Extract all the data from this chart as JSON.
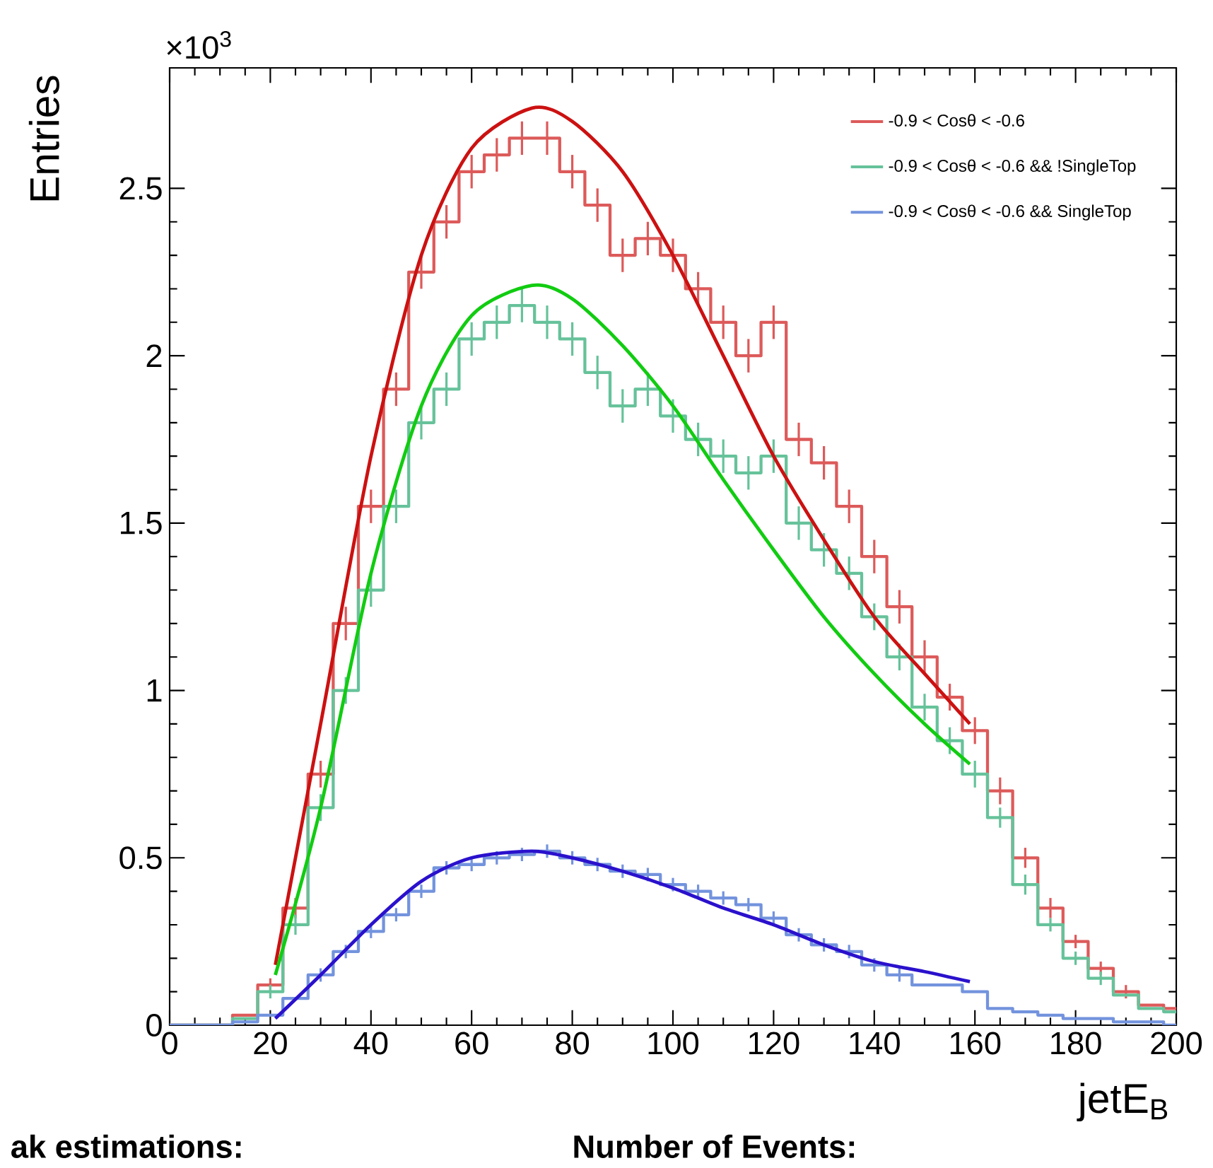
{
  "chart_data": {
    "type": "step",
    "xlabel": "jetE$_{B}$",
    "ylabel": "Entries",
    "annotations": [
      "×10$^{3}$",
      "ak estimations:",
      "Number of Events:"
    ],
    "xlim": [
      0,
      200
    ],
    "xticks": [
      0,
      20,
      40,
      60,
      80,
      100,
      120,
      140,
      160,
      180,
      200
    ],
    "ylim": [
      0,
      2.86
    ],
    "yticks": [
      0,
      0.5,
      1,
      1.5,
      2,
      2.5
    ],
    "legend": "top right",
    "grid": false,
    "x": [
      0,
      5,
      10,
      15,
      20,
      25,
      30,
      35,
      40,
      45,
      50,
      55,
      60,
      65,
      70,
      75,
      80,
      85,
      90,
      95,
      100,
      105,
      110,
      115,
      120,
      125,
      130,
      135,
      140,
      145,
      150,
      155,
      160,
      165,
      170,
      175,
      180,
      185,
      190,
      195,
      200
    ],
    "series": [
      {
        "name": "-0.9 < Cosθ < -0.6",
        "color": "#dd5a5a",
        "values": [
          0,
          0,
          0,
          0.03,
          0.12,
          0.35,
          0.75,
          1.2,
          1.55,
          1.9,
          2.25,
          2.4,
          2.55,
          2.6,
          2.65,
          2.65,
          2.55,
          2.45,
          2.3,
          2.35,
          2.3,
          2.2,
          2.1,
          2.0,
          2.1,
          1.75,
          1.68,
          1.55,
          1.4,
          1.25,
          1.1,
          0.98,
          0.88,
          0.7,
          0.5,
          0.35,
          0.25,
          0.17,
          0.1,
          0.06,
          0.05
        ],
        "errors": [
          null,
          null,
          null,
          null,
          0.02,
          0.03,
          0.04,
          0.05,
          0.05,
          0.05,
          0.05,
          0.05,
          0.05,
          0.05,
          0.05,
          0.05,
          0.05,
          0.05,
          0.05,
          0.05,
          0.05,
          0.05,
          0.05,
          0.05,
          0.05,
          0.05,
          0.05,
          0.05,
          0.05,
          0.05,
          0.05,
          0.04,
          0.04,
          0.04,
          0.03,
          0.03,
          0.02,
          0.02,
          0.02,
          null,
          null
        ]
      },
      {
        "name": "-0.9 < Cosθ < -0.6 && !SingleTop",
        "color": "#66c29a",
        "values": [
          0,
          0,
          0,
          0.02,
          0.1,
          0.3,
          0.65,
          1.0,
          1.3,
          1.55,
          1.8,
          1.9,
          2.05,
          2.1,
          2.15,
          2.1,
          2.05,
          1.95,
          1.85,
          1.9,
          1.82,
          1.75,
          1.7,
          1.65,
          1.7,
          1.5,
          1.42,
          1.35,
          1.22,
          1.1,
          0.95,
          0.85,
          0.75,
          0.62,
          0.42,
          0.3,
          0.2,
          0.14,
          0.09,
          0.05,
          0.04
        ],
        "errors": [
          null,
          null,
          null,
          null,
          0.02,
          0.03,
          0.04,
          0.04,
          0.05,
          0.05,
          0.05,
          0.05,
          0.05,
          0.05,
          0.05,
          0.05,
          0.05,
          0.05,
          0.05,
          0.05,
          0.05,
          0.05,
          0.05,
          0.05,
          0.05,
          0.05,
          0.05,
          0.05,
          0.04,
          0.04,
          0.04,
          0.04,
          0.04,
          0.03,
          0.03,
          0.02,
          0.02,
          0.02,
          null,
          null,
          null
        ]
      },
      {
        "name": "-0.9 < Cosθ < -0.6 && SingleTop",
        "color": "#7393dd",
        "values": [
          0,
          0,
          0,
          0.01,
          0.03,
          0.08,
          0.15,
          0.22,
          0.28,
          0.33,
          0.4,
          0.47,
          0.48,
          0.5,
          0.51,
          0.52,
          0.5,
          0.48,
          0.46,
          0.45,
          0.42,
          0.4,
          0.38,
          0.36,
          0.32,
          0.27,
          0.24,
          0.22,
          0.18,
          0.15,
          0.12,
          0.12,
          0.1,
          0.05,
          0.04,
          0.03,
          0.02,
          0.02,
          0.01,
          0.01,
          0
        ],
        "errors": [
          null,
          null,
          null,
          null,
          null,
          null,
          0.02,
          0.02,
          0.02,
          0.02,
          0.02,
          0.02,
          0.02,
          0.02,
          0.02,
          0.02,
          0.02,
          0.02,
          0.02,
          0.02,
          0.02,
          0.02,
          0.02,
          0.02,
          0.02,
          0.02,
          0.02,
          0.02,
          0.02,
          0.02,
          null,
          null,
          null,
          null,
          null,
          null,
          null,
          null,
          null,
          null,
          null
        ]
      },
      {
        "type": "line",
        "color": "#cc1111",
        "x": [
          21,
          30,
          40,
          50,
          60,
          72,
          80,
          90,
          100,
          110,
          120,
          130,
          140,
          150,
          159
        ],
        "values": [
          0.18,
          0.9,
          1.7,
          2.3,
          2.62,
          2.74,
          2.7,
          2.55,
          2.3,
          2.0,
          1.7,
          1.45,
          1.22,
          1.05,
          0.9
        ]
      },
      {
        "type": "line",
        "color": "#11cc11",
        "x": [
          21,
          30,
          40,
          50,
          60,
          72,
          80,
          90,
          100,
          110,
          120,
          130,
          140,
          150,
          159
        ],
        "values": [
          0.15,
          0.65,
          1.35,
          1.85,
          2.12,
          2.21,
          2.17,
          2.03,
          1.85,
          1.63,
          1.42,
          1.22,
          1.05,
          0.9,
          0.78
        ]
      },
      {
        "type": "line",
        "color": "#2a11cc",
        "x": [
          21,
          30,
          40,
          50,
          60,
          72,
          80,
          90,
          100,
          110,
          120,
          130,
          140,
          150,
          159
        ],
        "values": [
          0.02,
          0.15,
          0.3,
          0.43,
          0.5,
          0.52,
          0.5,
          0.46,
          0.41,
          0.35,
          0.3,
          0.24,
          0.19,
          0.16,
          0.13
        ]
      }
    ]
  }
}
